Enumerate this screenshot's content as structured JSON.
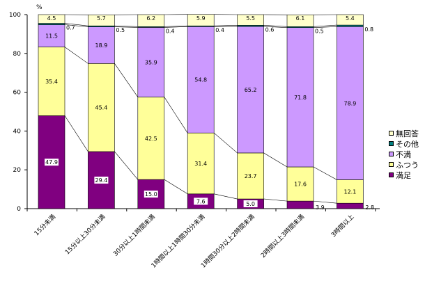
{
  "chart_data": {
    "type": "bar",
    "stacked": true,
    "normalized": true,
    "unit": "%",
    "ylim": [
      0,
      100
    ],
    "yticks": [
      0,
      20,
      40,
      60,
      80,
      100
    ],
    "grid": false,
    "legend_position": "right",
    "categories": [
      "15分未満",
      "15分以上30分未満",
      "30分以上1時間未満",
      "1時間以上1時間30分未満",
      "1時間30分以上2時間未満",
      "2時間以上3時間未満",
      "3時間以上"
    ],
    "series": [
      {
        "name": "満足",
        "color": "#800080",
        "values": [
          47.9,
          29.4,
          15.0,
          7.6,
          5.0,
          3.9,
          2.8
        ]
      },
      {
        "name": "ふつう",
        "color": "#FFFF99",
        "values": [
          35.4,
          45.4,
          42.5,
          31.4,
          23.7,
          17.6,
          12.1
        ]
      },
      {
        "name": "不満",
        "color": "#CC99FF",
        "values": [
          11.5,
          18.9,
          35.9,
          54.8,
          65.2,
          71.8,
          78.9
        ]
      },
      {
        "name": "その他",
        "color": "#008080",
        "values": [
          0.7,
          0.5,
          0.4,
          0.4,
          0.6,
          0.5,
          0.8
        ]
      },
      {
        "name": "無回答",
        "color": "#FFFFCC",
        "values": [
          4.5,
          5.7,
          6.2,
          5.9,
          5.5,
          6.1,
          5.4
        ]
      }
    ],
    "legend_order": [
      "無回答",
      "その他",
      "不満",
      "ふつう",
      "満足"
    ]
  }
}
